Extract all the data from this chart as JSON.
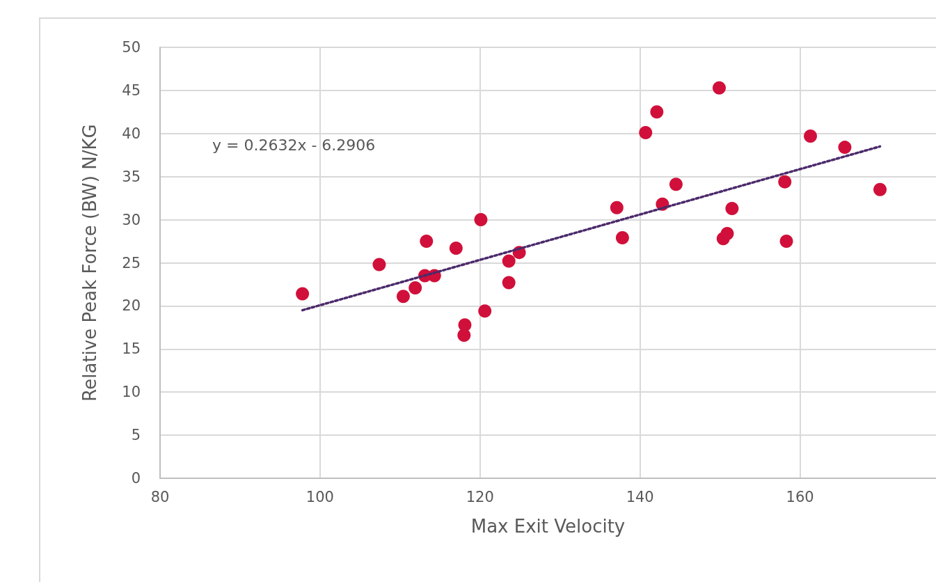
{
  "chart_data": {
    "type": "scatter",
    "xlabel": "Max Exit Velocity",
    "ylabel": "Relative Peak Force (BW) N/KG",
    "annotations": [
      "y = 0.2632x - 6.2906"
    ],
    "xlim": [
      80,
      177
    ],
    "xticks": [
      80,
      100,
      120,
      140,
      160
    ],
    "ylim": [
      0,
      50
    ],
    "yticks": [
      0,
      5,
      10,
      15,
      20,
      25,
      30,
      35,
      40,
      45,
      50
    ],
    "grid": true,
    "marker": "circle",
    "series": [
      {
        "color": "#d0103a",
        "x": [
          97.8,
          107.4,
          110.4,
          111.9,
          113.3,
          113.1,
          114.3,
          117.0,
          118.1,
          118.0,
          120.1,
          120.6,
          123.6,
          123.6,
          124.9,
          137.1,
          137.8,
          140.7,
          142.1,
          142.8,
          144.5,
          149.9,
          150.4,
          150.9,
          151.5,
          158.1,
          158.3,
          161.3,
          165.6,
          170.0
        ],
        "values": [
          21.4,
          24.8,
          21.1,
          22.1,
          27.5,
          23.5,
          23.5,
          26.7,
          17.8,
          16.6,
          30.0,
          19.4,
          25.2,
          22.7,
          26.2,
          31.4,
          27.9,
          40.1,
          42.5,
          31.8,
          34.1,
          45.3,
          27.8,
          28.4,
          31.3,
          34.4,
          27.5,
          39.7,
          38.4,
          33.5
        ]
      },
      {
        "type": "line",
        "color": "#4b2a6b",
        "line_style": "dotted",
        "marker": "none",
        "x": [
          97.8,
          170.0
        ],
        "values": [
          19.5,
          38.5
        ]
      }
    ]
  }
}
